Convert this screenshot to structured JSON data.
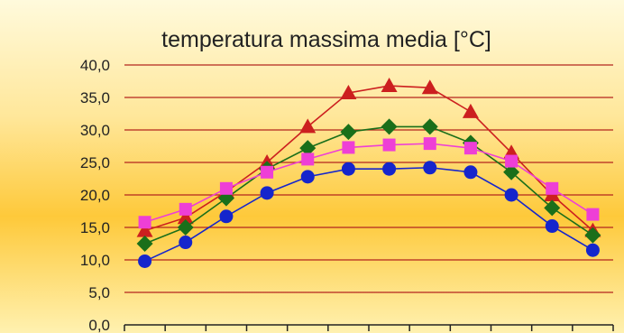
{
  "chart_data": {
    "type": "line",
    "title": "temperatura massima media [°C]",
    "xlabel": "",
    "ylabel": "",
    "ylim": [
      0,
      40
    ],
    "y_ticks": [
      "0,0",
      "5,0",
      "10,0",
      "15,0",
      "20,0",
      "25,0",
      "30,0",
      "35,0",
      "40,0"
    ],
    "x_count": 12,
    "grid": true,
    "legend": "none",
    "series": [
      {
        "color": "#cc1f1f",
        "marker": "triangle",
        "values": [
          14.5,
          16.5,
          20.5,
          25.0,
          30.5,
          35.7,
          36.8,
          36.5,
          32.8,
          26.5,
          20.0,
          14.5
        ]
      },
      {
        "color": "#1a6f1a",
        "marker": "diamond",
        "values": [
          12.5,
          15.0,
          19.5,
          24.0,
          27.2,
          29.7,
          30.5,
          30.5,
          28.0,
          23.5,
          18.0,
          13.8
        ]
      },
      {
        "color": "#ee3fd6",
        "marker": "square",
        "values": [
          15.8,
          17.8,
          21.0,
          23.5,
          25.5,
          27.3,
          27.7,
          27.9,
          27.2,
          25.2,
          21.0,
          17.0
        ]
      },
      {
        "color": "#1525cc",
        "marker": "circle",
        "values": [
          9.8,
          12.7,
          16.7,
          20.3,
          22.8,
          24.0,
          24.0,
          24.2,
          23.5,
          20.0,
          15.2,
          11.5
        ]
      }
    ]
  },
  "colors": {
    "gridline": "#b3261e",
    "axis": "#222222"
  }
}
